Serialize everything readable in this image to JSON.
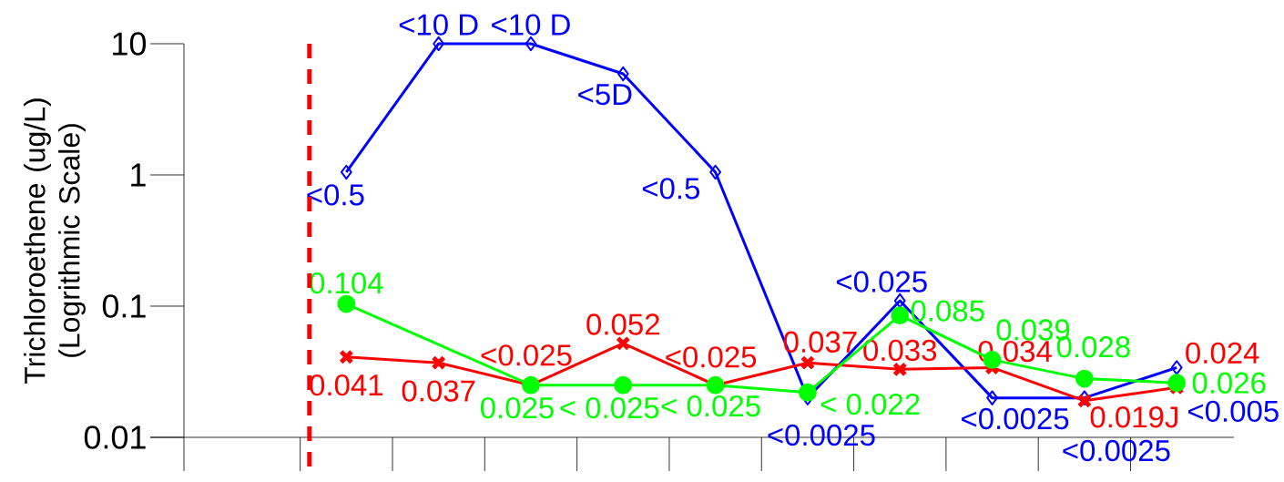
{
  "chart_data": {
    "type": "line",
    "ylabel": "Trichloroethene (ug/L) (Logrithmic Scale)",
    "log": "y",
    "tick_labels": "y",
    "categories": [
      null,
      null,
      null,
      null,
      null,
      null,
      null,
      null,
      null,
      null
    ],
    "ylim": [
      0.01,
      10
    ],
    "yticks": [
      0.01,
      0.1,
      1,
      10
    ],
    "series": [
      {
        "color": "#0000ff",
        "marker": "diamond",
        "values": [
          1.05,
          10,
          10,
          5.9,
          1.05,
          0.02,
          0.11,
          0.02,
          0.02,
          0.034
        ],
        "value_labels": [
          "<0.5",
          "<10 D",
          "<10 D",
          "<5D",
          "<0.5",
          "<0.0025",
          "<0.025",
          "<0.0025",
          "<0.0025",
          "<0.005"
        ]
      },
      {
        "color": "#ff0000",
        "marker": "cross",
        "values": [
          0.041,
          0.037,
          0.025,
          0.052,
          0.025,
          0.037,
          0.033,
          0.034,
          0.019,
          0.024
        ],
        "value_labels": [
          "0.041",
          "0.037",
          "<0.025",
          "0.052",
          "<0.025",
          "0.037",
          "0.033",
          "0.034",
          "0.019J",
          "0.024"
        ]
      },
      {
        "color": "#00ff00",
        "marker": "circle",
        "values": [
          0.104,
          null,
          0.025,
          0.025,
          0.025,
          0.022,
          0.085,
          0.039,
          0.028,
          0.026
        ],
        "value_labels": [
          "0.104",
          null,
          "0.025",
          "< 0.025",
          "< 0.025",
          "< 0.022",
          "0.085",
          "0.039",
          "0.028",
          "0.026"
        ]
      }
    ]
  }
}
